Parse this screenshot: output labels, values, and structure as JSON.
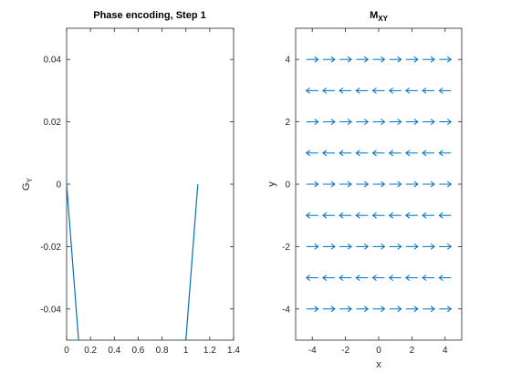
{
  "figure": {
    "background": "#ffffff",
    "axis_color": "#262626",
    "series_color": "#0072bd"
  },
  "chart_data": [
    {
      "type": "line",
      "title": "Phase encoding, Step 1",
      "xlabel": "",
      "ylabel": "G",
      "ylabel_sub": "Y",
      "xlim": [
        0,
        1.4
      ],
      "ylim": [
        -0.05,
        0.05
      ],
      "xticks": [
        0,
        0.2,
        0.4,
        0.6,
        0.8,
        1,
        1.2,
        1.4
      ],
      "xtick_labels": [
        "0",
        "0.2",
        "0.4",
        "0.6",
        "0.8",
        "1",
        "1.2",
        "1.4"
      ],
      "yticks": [
        -0.04,
        -0.02,
        0,
        0.02,
        0.04
      ],
      "ytick_labels": [
        "-0.04",
        "-0.02",
        "0",
        "0.02",
        "0.04"
      ],
      "grid": false,
      "series": [
        {
          "x": [
            0,
            0.1
          ],
          "y": [
            0,
            -0.05
          ]
        },
        {
          "x": [
            1,
            1.1
          ],
          "y": [
            -0.05,
            0
          ]
        }
      ]
    },
    {
      "type": "quiver",
      "title": "M",
      "title_sub": "XY",
      "xlabel": "x",
      "ylabel": "y",
      "xlim": [
        -5,
        5
      ],
      "ylim": [
        -5,
        5
      ],
      "xticks": [
        -4,
        -2,
        0,
        2,
        4
      ],
      "xtick_labels": [
        "-4",
        "-2",
        "0",
        "2",
        "4"
      ],
      "yticks": [
        -4,
        -2,
        0,
        2,
        4
      ],
      "ytick_labels": [
        "-4",
        "-2",
        "0",
        "2",
        "4"
      ],
      "grid": false,
      "x_positions": [
        -4,
        -3,
        -2,
        -1,
        0,
        1,
        2,
        3,
        4
      ],
      "rows": [
        {
          "y": 4,
          "direction": "right"
        },
        {
          "y": 3,
          "direction": "left"
        },
        {
          "y": 2,
          "direction": "right"
        },
        {
          "y": 1,
          "direction": "left"
        },
        {
          "y": 0,
          "direction": "right"
        },
        {
          "y": -1,
          "direction": "left"
        },
        {
          "y": -2,
          "direction": "right"
        },
        {
          "y": -3,
          "direction": "left"
        },
        {
          "y": -4,
          "direction": "right"
        }
      ]
    }
  ]
}
